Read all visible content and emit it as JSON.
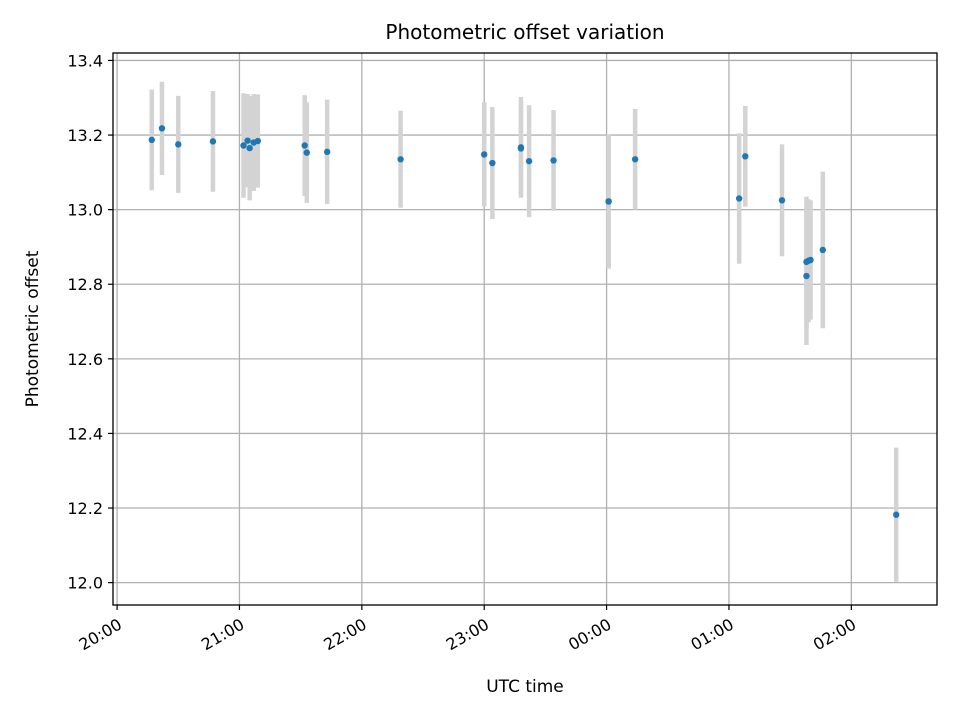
{
  "chart_data": {
    "type": "scatter",
    "title": "Photometric offset variation",
    "xlabel": "UTC time",
    "ylabel": "Photometric offset",
    "x_unit": "UTC clock time (after 24:00 continues on the next day)",
    "xlim": [
      "19:58",
      "02:42"
    ],
    "ylim": [
      11.94,
      13.42
    ],
    "x_ticks": [
      "20:00",
      "21:00",
      "22:00",
      "23:00",
      "00:00",
      "01:00",
      "02:00"
    ],
    "y_ticks": [
      "12.0",
      "12.2",
      "12.4",
      "12.6",
      "12.8",
      "13.0",
      "13.2",
      "13.4"
    ],
    "grid": true,
    "point_color": "#1f77b4",
    "errorbar_color": "#d3d3d3",
    "points": [
      {
        "t": "20:17",
        "y": 13.187,
        "err": 0.135
      },
      {
        "t": "20:22",
        "y": 13.218,
        "err": 0.125
      },
      {
        "t": "20:30",
        "y": 13.175,
        "err": 0.13
      },
      {
        "t": "20:47",
        "y": 13.183,
        "err": 0.135
      },
      {
        "t": "21:02",
        "y": 13.172,
        "err": 0.14
      },
      {
        "t": "21:04",
        "y": 13.185,
        "err": 0.125
      },
      {
        "t": "21:05",
        "y": 13.165,
        "err": 0.14
      },
      {
        "t": "21:07",
        "y": 13.18,
        "err": 0.13
      },
      {
        "t": "21:09",
        "y": 13.184,
        "err": 0.125
      },
      {
        "t": "21:32",
        "y": 13.172,
        "err": 0.135
      },
      {
        "t": "21:33",
        "y": 13.153,
        "err": 0.135
      },
      {
        "t": "21:43",
        "y": 13.155,
        "err": 0.14
      },
      {
        "t": "22:19",
        "y": 13.135,
        "err": 0.13
      },
      {
        "t": "23:00",
        "y": 13.148,
        "err": 0.14
      },
      {
        "t": "23:04",
        "y": 13.125,
        "err": 0.15
      },
      {
        "t": "23:18",
        "y": 13.167,
        "err": 0.135
      },
      {
        "t": "23:18",
        "y": 13.164,
        "err": 0.125
      },
      {
        "t": "23:22",
        "y": 13.13,
        "err": 0.15
      },
      {
        "t": "23:34",
        "y": 13.132,
        "err": 0.135
      },
      {
        "t": "00:01",
        "y": 13.022,
        "err": 0.18
      },
      {
        "t": "00:01",
        "y": 13.022,
        "err": 0.175
      },
      {
        "t": "00:14",
        "y": 13.135,
        "err": 0.135
      },
      {
        "t": "01:05",
        "y": 13.03,
        "err": 0.175
      },
      {
        "t": "01:08",
        "y": 13.143,
        "err": 0.135
      },
      {
        "t": "01:26",
        "y": 13.025,
        "err": 0.15
      },
      {
        "t": "01:38",
        "y": 12.822,
        "err": 0.185
      },
      {
        "t": "01:38",
        "y": 12.86,
        "err": 0.175
      },
      {
        "t": "01:39",
        "y": 12.863,
        "err": 0.165
      },
      {
        "t": "01:40",
        "y": 12.865,
        "err": 0.16
      },
      {
        "t": "01:46",
        "y": 12.892,
        "err": 0.21
      },
      {
        "t": "02:22",
        "y": 12.182,
        "err": 0.18
      }
    ]
  }
}
